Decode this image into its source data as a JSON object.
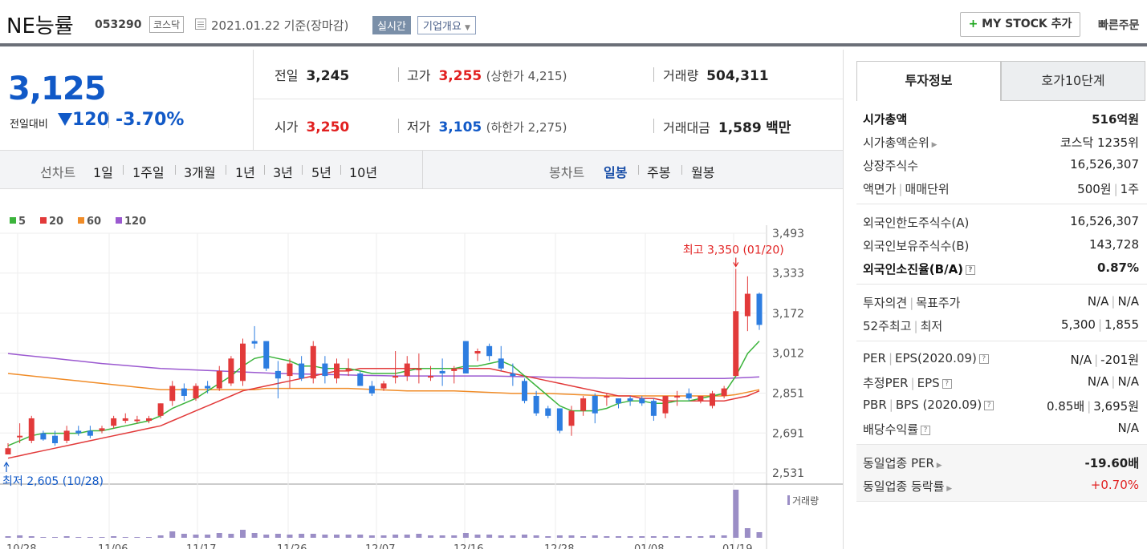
{
  "header": {
    "name": "NE능률",
    "code": "053290",
    "market": "코스닥",
    "date": "2021.01.22  기준(장마감)",
    "realtime": "실시간",
    "overview": "기업개요",
    "mystock_plus": "+",
    "mystock_label": "MY STOCK 추가",
    "quick_order": "빠른주문"
  },
  "price": {
    "current": "3,125",
    "compare_label": "전일대비",
    "change": "120",
    "change_pct": "-3.70%",
    "direction": "down",
    "down_color": "#1159c7"
  },
  "stats": {
    "prev_label": "전일",
    "prev": "3,245",
    "high_label": "고가",
    "high": "3,255",
    "upper_limit": "(상한가 4,215)",
    "volume_label": "거래량",
    "volume": "504,311",
    "open_label": "시가",
    "open": "3,250",
    "low_label": "저가",
    "low": "3,105",
    "lower_limit": "(하한가 2,275)",
    "amount_label": "거래대금",
    "amount": "1,589",
    "amount_unit": "백만"
  },
  "periods": {
    "line_label": "선차트",
    "line_items": [
      "1일",
      "1주일",
      "3개월",
      "1년",
      "3년",
      "5년",
      "10년"
    ],
    "candle_label": "봉차트",
    "candle_items": [
      "일봉",
      "주봉",
      "월봉"
    ],
    "candle_selected": "일봉"
  },
  "chart_data": {
    "type": "candlestick",
    "ma_legend": [
      "5",
      "20",
      "60",
      "120"
    ],
    "ma_colors": [
      "#3cb43c",
      "#e23a3a",
      "#f08c28",
      "#9b59d0"
    ],
    "y_ticks": [
      "3,493",
      "3,333",
      "3,172",
      "3,012",
      "2,851",
      "2,691",
      "2,531"
    ],
    "y_range": [
      2531,
      3493
    ],
    "x_ticks": [
      "10/28",
      "11/06",
      "11/17",
      "11/26",
      "12/07",
      "12/16",
      "12/28",
      "01/08",
      "01/19"
    ],
    "high_annotation": "최고 3,350 (01/20)",
    "low_annotation": "최저 2,605 (10/28)",
    "volume_label": "거래량",
    "up_color": "#e23a3a",
    "down_color": "#2d7de0",
    "candles": [
      {
        "o": 2605,
        "h": 2650,
        "l": 2605,
        "c": 2630
      },
      {
        "o": 2680,
        "h": 2730,
        "l": 2650,
        "c": 2680
      },
      {
        "o": 2660,
        "h": 2760,
        "l": 2650,
        "c": 2750
      },
      {
        "o": 2690,
        "h": 2700,
        "l": 2660,
        "c": 2665
      },
      {
        "o": 2680,
        "h": 2700,
        "l": 2640,
        "c": 2650
      },
      {
        "o": 2660,
        "h": 2720,
        "l": 2650,
        "c": 2700
      },
      {
        "o": 2700,
        "h": 2720,
        "l": 2680,
        "c": 2690
      },
      {
        "o": 2700,
        "h": 2720,
        "l": 2670,
        "c": 2680
      },
      {
        "o": 2700,
        "h": 2720,
        "l": 2690,
        "c": 2710
      },
      {
        "o": 2720,
        "h": 2760,
        "l": 2710,
        "c": 2750
      },
      {
        "o": 2740,
        "h": 2770,
        "l": 2730,
        "c": 2750
      },
      {
        "o": 2740,
        "h": 2760,
        "l": 2730,
        "c": 2745
      },
      {
        "o": 2740,
        "h": 2760,
        "l": 2730,
        "c": 2750
      },
      {
        "o": 2760,
        "h": 2810,
        "l": 2750,
        "c": 2810
      },
      {
        "o": 2820,
        "h": 2900,
        "l": 2800,
        "c": 2880
      },
      {
        "o": 2870,
        "h": 2890,
        "l": 2820,
        "c": 2840
      },
      {
        "o": 2830,
        "h": 2890,
        "l": 2820,
        "c": 2880
      },
      {
        "o": 2880,
        "h": 2900,
        "l": 2850,
        "c": 2870
      },
      {
        "o": 2870,
        "h": 2960,
        "l": 2860,
        "c": 2940
      },
      {
        "o": 2890,
        "h": 3000,
        "l": 2880,
        "c": 2990
      },
      {
        "o": 2900,
        "h": 3070,
        "l": 2880,
        "c": 3050
      },
      {
        "o": 3060,
        "h": 3120,
        "l": 3030,
        "c": 3050
      },
      {
        "o": 3060,
        "h": 3060,
        "l": 2940,
        "c": 2950
      },
      {
        "o": 2940,
        "h": 2980,
        "l": 2830,
        "c": 2910
      },
      {
        "o": 2920,
        "h": 2990,
        "l": 2870,
        "c": 2970
      },
      {
        "o": 2970,
        "h": 3000,
        "l": 2900,
        "c": 2910
      },
      {
        "o": 2910,
        "h": 3060,
        "l": 2890,
        "c": 3040
      },
      {
        "o": 2970,
        "h": 3000,
        "l": 2890,
        "c": 2920
      },
      {
        "o": 2910,
        "h": 2990,
        "l": 2890,
        "c": 2970
      },
      {
        "o": 2940,
        "h": 2990,
        "l": 2920,
        "c": 2950
      },
      {
        "o": 2930,
        "h": 2940,
        "l": 2880,
        "c": 2880
      },
      {
        "o": 2880,
        "h": 2900,
        "l": 2840,
        "c": 2850
      },
      {
        "o": 2870,
        "h": 2900,
        "l": 2860,
        "c": 2890
      },
      {
        "o": 2920,
        "h": 3020,
        "l": 2890,
        "c": 2920
      },
      {
        "o": 2920,
        "h": 3000,
        "l": 2900,
        "c": 2970
      },
      {
        "o": 2950,
        "h": 3010,
        "l": 2890,
        "c": 2950
      },
      {
        "o": 2920,
        "h": 2960,
        "l": 2900,
        "c": 2920
      },
      {
        "o": 2940,
        "h": 2990,
        "l": 2880,
        "c": 2930
      },
      {
        "o": 2940,
        "h": 2960,
        "l": 2890,
        "c": 2950
      },
      {
        "o": 3060,
        "h": 3060,
        "l": 2930,
        "c": 2930
      },
      {
        "o": 3010,
        "h": 3030,
        "l": 2980,
        "c": 3020
      },
      {
        "o": 3040,
        "h": 3050,
        "l": 2980,
        "c": 3000
      },
      {
        "o": 2990,
        "h": 3040,
        "l": 2940,
        "c": 2950
      },
      {
        "o": 2930,
        "h": 2970,
        "l": 2880,
        "c": 2920
      },
      {
        "o": 2900,
        "h": 2910,
        "l": 2810,
        "c": 2820
      },
      {
        "o": 2840,
        "h": 2860,
        "l": 2760,
        "c": 2770
      },
      {
        "o": 2790,
        "h": 2800,
        "l": 2750,
        "c": 2760
      },
      {
        "o": 2790,
        "h": 2790,
        "l": 2690,
        "c": 2700
      },
      {
        "o": 2720,
        "h": 2800,
        "l": 2680,
        "c": 2780
      },
      {
        "o": 2780,
        "h": 2840,
        "l": 2760,
        "c": 2830
      },
      {
        "o": 2840,
        "h": 2850,
        "l": 2730,
        "c": 2770
      },
      {
        "o": 2840,
        "h": 2850,
        "l": 2800,
        "c": 2840
      },
      {
        "o": 2830,
        "h": 2830,
        "l": 2790,
        "c": 2810
      },
      {
        "o": 2830,
        "h": 2840,
        "l": 2800,
        "c": 2820
      },
      {
        "o": 2830,
        "h": 2840,
        "l": 2800,
        "c": 2810
      },
      {
        "o": 2820,
        "h": 2830,
        "l": 2740,
        "c": 2760
      },
      {
        "o": 2770,
        "h": 2840,
        "l": 2750,
        "c": 2840
      },
      {
        "o": 2840,
        "h": 2860,
        "l": 2800,
        "c": 2840
      },
      {
        "o": 2850,
        "h": 2870,
        "l": 2820,
        "c": 2830
      },
      {
        "o": 2820,
        "h": 2840,
        "l": 2810,
        "c": 2840
      },
      {
        "o": 2800,
        "h": 2860,
        "l": 2790,
        "c": 2850
      },
      {
        "o": 2840,
        "h": 2880,
        "l": 2830,
        "c": 2870
      },
      {
        "o": 2920,
        "h": 3350,
        "l": 2920,
        "c": 3180
      },
      {
        "o": 3160,
        "h": 3320,
        "l": 3100,
        "c": 3250
      },
      {
        "o": 3250,
        "h": 3255,
        "l": 3105,
        "c": 3125
      }
    ],
    "ma5": [
      2640,
      2660,
      2680,
      2690,
      2690,
      2690,
      2690,
      2700,
      2700,
      2710,
      2720,
      2730,
      2740,
      2760,
      2790,
      2810,
      2830,
      2860,
      2890,
      2920,
      2960,
      2990,
      3000,
      2990,
      2980,
      2960,
      2960,
      2950,
      2950,
      2950,
      2940,
      2930,
      2930,
      2930,
      2940,
      2950,
      2950,
      2950,
      2950,
      2960,
      2960,
      2970,
      2980,
      2960,
      2920,
      2880,
      2840,
      2800,
      2780,
      2780,
      2780,
      2790,
      2810,
      2820,
      2820,
      2810,
      2810,
      2820,
      2820,
      2830,
      2840,
      2850,
      2920,
      3010,
      3060
    ],
    "ma20": [
      2590,
      2600,
      2610,
      2620,
      2630,
      2640,
      2650,
      2660,
      2670,
      2680,
      2690,
      2700,
      2710,
      2720,
      2740,
      2760,
      2780,
      2800,
      2820,
      2840,
      2860,
      2870,
      2880,
      2890,
      2900,
      2910,
      2920,
      2930,
      2940,
      2940,
      2950,
      2950,
      2950,
      2950,
      2950,
      2950,
      2950,
      2950,
      2950,
      2950,
      2950,
      2950,
      2940,
      2930,
      2920,
      2910,
      2900,
      2890,
      2880,
      2870,
      2860,
      2850,
      2840,
      2840,
      2830,
      2830,
      2820,
      2820,
      2820,
      2820,
      2820,
      2820,
      2830,
      2840,
      2860
    ],
    "ma60": [
      2930,
      2925,
      2920,
      2915,
      2910,
      2905,
      2900,
      2895,
      2890,
      2885,
      2880,
      2875,
      2870,
      2865,
      2865,
      2865,
      2865,
      2865,
      2865,
      2865,
      2865,
      2865,
      2870,
      2870,
      2870,
      2870,
      2870,
      2870,
      2870,
      2870,
      2868,
      2866,
      2864,
      2862,
      2860,
      2860,
      2860,
      2860,
      2860,
      2858,
      2856,
      2854,
      2852,
      2850,
      2850,
      2850,
      2850,
      2848,
      2846,
      2844,
      2842,
      2840,
      2840,
      2840,
      2840,
      2840,
      2840,
      2840,
      2840,
      2840,
      2840,
      2840,
      2845,
      2855,
      2865
    ],
    "ma120": [
      3010,
      3005,
      3000,
      2995,
      2990,
      2985,
      2980,
      2975,
      2970,
      2966,
      2962,
      2958,
      2954,
      2950,
      2948,
      2946,
      2944,
      2942,
      2940,
      2938,
      2936,
      2934,
      2932,
      2930,
      2929,
      2928,
      2927,
      2926,
      2925,
      2924,
      2923,
      2922,
      2921,
      2920,
      2920,
      2920,
      2920,
      2920,
      2920,
      2920,
      2920,
      2920,
      2919,
      2918,
      2917,
      2916,
      2915,
      2914,
      2913,
      2912,
      2912,
      2911,
      2911,
      2910,
      2910,
      2910,
      2910,
      2910,
      2910,
      2910,
      2910,
      2910,
      2912,
      2914,
      2916
    ],
    "volume": [
      2,
      3,
      2,
      1,
      1,
      2,
      1,
      1,
      1,
      2,
      1,
      1,
      1,
      3,
      8,
      5,
      4,
      4,
      6,
      5,
      10,
      6,
      4,
      5,
      4,
      5,
      5,
      4,
      4,
      4,
      4,
      3,
      3,
      4,
      4,
      5,
      3,
      3,
      3,
      6,
      4,
      4,
      3,
      3,
      4,
      3,
      2,
      3,
      3,
      2,
      3,
      2,
      2,
      2,
      2,
      2,
      2,
      2,
      2,
      2,
      3,
      3,
      60,
      12,
      7
    ]
  },
  "tabs": {
    "invest": "투자정보",
    "orderbook": "호가10단계"
  },
  "invest": {
    "g1": [
      {
        "k": "시가총액",
        "v": "516억원",
        "kb": true,
        "vb": true
      },
      {
        "k": "시가총액순위",
        "v": "코스닥 1235위",
        "arrow": true
      },
      {
        "k": "상장주식수",
        "v": "16,526,307"
      },
      {
        "k": "액면가",
        "k2": "매매단위",
        "v": "500원",
        "v2": "1주"
      }
    ],
    "g2": [
      {
        "k": "외국인한도주식수(A)",
        "v": "16,526,307"
      },
      {
        "k": "외국인보유주식수(B)",
        "v": "143,728"
      },
      {
        "k": "외국인소진율(B/A)",
        "v": "0.87%",
        "kb": true,
        "vb": true,
        "help": true
      }
    ],
    "g3": [
      {
        "k": "투자의견",
        "k2": "목표주가",
        "v": "N/A",
        "v2": "N/A"
      },
      {
        "k": "52주최고",
        "k2": "최저",
        "v": "5,300",
        "v2": "1,855"
      }
    ],
    "g4": [
      {
        "k": "PER",
        "k2": "EPS(2020.09)",
        "v": "N/A",
        "v2": "-201원",
        "help": true
      },
      {
        "k": "추정PER",
        "k2": "EPS",
        "v": "N/A",
        "v2": "N/A",
        "help": true
      },
      {
        "k": "PBR",
        "k2": "BPS (2020.09)",
        "v": "0.85배",
        "v2": "3,695원",
        "help": true
      },
      {
        "k": "배당수익률",
        "v": "N/A",
        "help": true
      }
    ],
    "g5": [
      {
        "k": "동일업종 PER",
        "v": "-19.60배",
        "arrow": true,
        "vb": true
      },
      {
        "k": "동일업종 등락률",
        "v": "+0.70%",
        "arrow": true,
        "red": true
      }
    ]
  }
}
